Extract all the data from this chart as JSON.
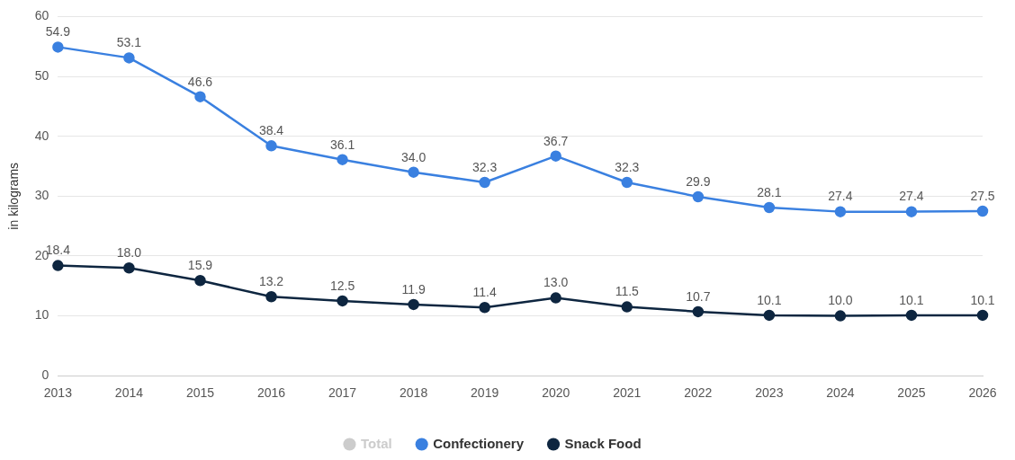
{
  "chart_data": {
    "type": "line",
    "ylabel": "in kilograms",
    "categories": [
      "2013",
      "2014",
      "2015",
      "2016",
      "2017",
      "2018",
      "2019",
      "2020",
      "2021",
      "2022",
      "2023",
      "2024",
      "2025",
      "2026"
    ],
    "series": [
      {
        "name": "Total",
        "color": "#cccccc",
        "values": [
          null,
          null,
          null,
          null,
          null,
          null,
          null,
          null,
          null,
          null,
          null,
          null,
          null,
          null
        ]
      },
      {
        "name": "Confectionery",
        "color": "#3a80e0",
        "values": [
          54.9,
          53.1,
          46.6,
          38.4,
          36.1,
          34.0,
          32.3,
          36.7,
          32.3,
          29.9,
          28.1,
          27.4,
          27.4,
          27.5
        ],
        "value_labels": [
          "54.9",
          "53.1",
          "46.6",
          "38.4",
          "36.1",
          "34.0",
          "32.3",
          "36.7",
          "32.3",
          "29.9",
          "28.1",
          "27.4",
          "27.4",
          "27.5"
        ]
      },
      {
        "name": "Snack Food",
        "color": "#0e2640",
        "values": [
          18.4,
          18.0,
          15.9,
          13.2,
          12.5,
          11.9,
          11.4,
          13.0,
          11.5,
          10.7,
          10.1,
          10.0,
          10.1,
          10.1
        ],
        "value_labels": [
          "18.4",
          "18.0",
          "15.9",
          "13.2",
          "12.5",
          "11.9",
          "11.4",
          "13.0",
          "11.5",
          "10.7",
          "10.1",
          "10.0",
          "10.1",
          "10.1"
        ]
      }
    ],
    "ylim": [
      0,
      60
    ],
    "yticks": [
      0,
      10,
      20,
      30,
      40,
      50,
      60
    ],
    "grid": "y",
    "legend": "bottom",
    "marker": "circle",
    "line_style": "solid"
  }
}
